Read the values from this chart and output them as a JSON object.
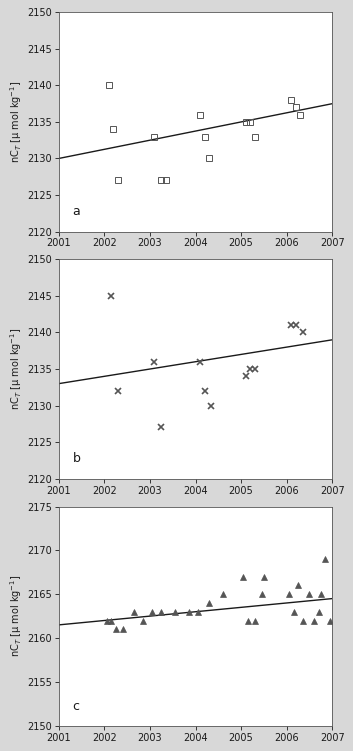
{
  "panel_a": {
    "x": [
      2002.1,
      2002.2,
      2002.3,
      2003.1,
      2003.25,
      2003.35,
      2004.1,
      2004.2,
      2004.3,
      2005.1,
      2005.2,
      2005.3,
      2006.1,
      2006.2,
      2006.3
    ],
    "y": [
      2140,
      2134,
      2127,
      2133,
      2127,
      2127,
      2136,
      2133,
      2130,
      2135,
      2135,
      2133,
      2138,
      2137,
      2136
    ],
    "trend_x": [
      2001,
      2007
    ],
    "trend_y": [
      2130.0,
      2137.5
    ],
    "ylabel": "nC$_T$ [μ mol kg$^{-1}$]",
    "ylim": [
      2120,
      2150
    ],
    "yticks": [
      2120,
      2125,
      2130,
      2135,
      2140,
      2145,
      2150
    ],
    "label": "a"
  },
  "panel_b": {
    "x": [
      2002.15,
      2002.3,
      2003.1,
      2003.25,
      2004.1,
      2004.2,
      2004.35,
      2005.1,
      2005.2,
      2005.3,
      2006.1,
      2006.2,
      2006.35
    ],
    "y": [
      2145,
      2132,
      2136,
      2127,
      2136,
      2132,
      2130,
      2134,
      2135,
      2135,
      2141,
      2141,
      2140
    ],
    "trend_x": [
      2001,
      2007
    ],
    "trend_y": [
      2133.0,
      2139.0
    ],
    "ylabel": "nC$_T$ [μ mol kg$^{-1}$]",
    "ylim": [
      2120,
      2150
    ],
    "yticks": [
      2120,
      2125,
      2130,
      2135,
      2140,
      2145,
      2150
    ],
    "label": "b"
  },
  "panel_c": {
    "x": [
      2002.05,
      2002.15,
      2002.25,
      2002.4,
      2002.65,
      2002.85,
      2003.05,
      2003.25,
      2003.55,
      2003.85,
      2004.05,
      2004.3,
      2004.6,
      2005.05,
      2005.15,
      2005.3,
      2005.45,
      2005.5,
      2006.05,
      2006.15,
      2006.25,
      2006.35,
      2006.5,
      2006.6,
      2006.7,
      2006.75,
      2006.85,
      2006.95
    ],
    "y": [
      2162,
      2162,
      2161,
      2161,
      2163,
      2162,
      2163,
      2163,
      2163,
      2163,
      2163,
      2164,
      2165,
      2167,
      2162,
      2162,
      2165,
      2167,
      2165,
      2163,
      2166,
      2162,
      2165,
      2162,
      2163,
      2165,
      2169,
      2162
    ],
    "trend_x": [
      2001,
      2007
    ],
    "trend_y": [
      2161.5,
      2164.5
    ],
    "ylabel": "nC$_T$ [μ mol kg$^{-1}$]",
    "ylim": [
      2150,
      2175
    ],
    "yticks": [
      2150,
      2155,
      2160,
      2165,
      2170,
      2175
    ],
    "label": "c"
  },
  "xlim": [
    2001,
    2007
  ],
  "xticks": [
    2001,
    2002,
    2003,
    2004,
    2005,
    2006,
    2007
  ],
  "fig_bg_color": "#d8d8d8",
  "plot_bg": "#ffffff",
  "line_color": "#1a1a1a",
  "marker_color": "#555555",
  "text_color": "#1a1a1a",
  "spine_color": "#555555"
}
